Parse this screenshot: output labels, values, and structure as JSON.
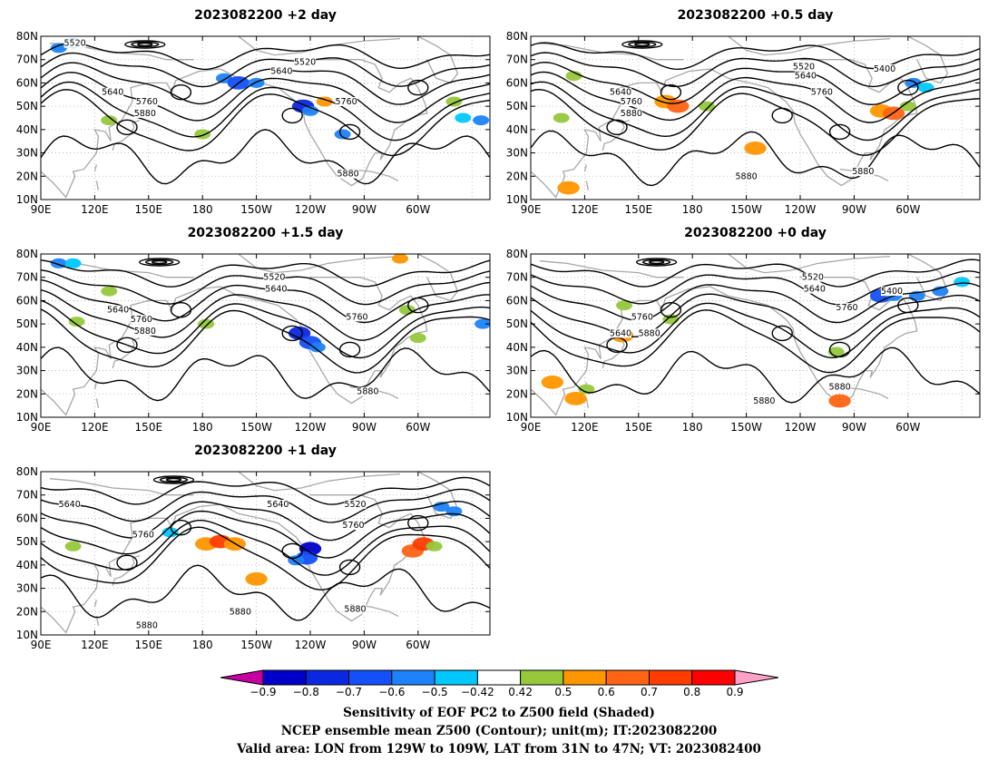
{
  "chart_data": [
    {
      "type": "heatmap",
      "title": "2023082200  +2 day",
      "lon_ticks": [
        "90E",
        "120E",
        "150E",
        "180",
        "150W",
        "120W",
        "90W",
        "60W"
      ],
      "lat_ticks": [
        "10N",
        "20N",
        "30N",
        "40N",
        "50N",
        "60N",
        "70N",
        "80N"
      ],
      "lon_range": [
        90,
        340
      ],
      "lat_range": [
        10,
        80
      ],
      "contour_labels": [
        {
          "text": "5520",
          "lon": 109,
          "lat": 77
        },
        {
          "text": "5520",
          "lon": 237,
          "lat": 69
        },
        {
          "text": "5640",
          "lon": 224,
          "lat": 65
        },
        {
          "text": "5640",
          "lon": 130,
          "lat": 56
        },
        {
          "text": "5760",
          "lon": 149,
          "lat": 52
        },
        {
          "text": "5880",
          "lon": 148,
          "lat": 47
        },
        {
          "text": "5760",
          "lon": 260,
          "lat": 52
        },
        {
          "text": "5880",
          "lon": 261,
          "lat": 21
        }
      ],
      "shading": [
        {
          "lon": 100,
          "lat": 75,
          "v": -0.5
        },
        {
          "lon": 108,
          "lat": 77,
          "v": -0.45
        },
        {
          "lon": 192,
          "lat": 62,
          "v": -0.5
        },
        {
          "lon": 200,
          "lat": 60,
          "v": -0.6
        },
        {
          "lon": 210,
          "lat": 60,
          "v": -0.5
        },
        {
          "lon": 236,
          "lat": 50,
          "v": -0.7
        },
        {
          "lon": 240,
          "lat": 48,
          "v": -0.5
        },
        {
          "lon": 248,
          "lat": 52,
          "v": 0.55
        },
        {
          "lon": 258,
          "lat": 38,
          "v": -0.5
        },
        {
          "lon": 320,
          "lat": 52,
          "v": 0.45
        },
        {
          "lon": 325,
          "lat": 45,
          "v": -0.45
        },
        {
          "lon": 335,
          "lat": 44,
          "v": -0.5
        },
        {
          "lon": 128,
          "lat": 44,
          "v": 0.45
        },
        {
          "lon": 180,
          "lat": 38,
          "v": 0.45
        }
      ]
    },
    {
      "type": "heatmap",
      "title": "2023082200  +0.5  day",
      "lon_ticks": [
        "90E",
        "120E",
        "150E",
        "180",
        "150W",
        "120W",
        "90W",
        "60W"
      ],
      "lat_ticks": [
        "10N",
        "20N",
        "30N",
        "40N",
        "50N",
        "60N",
        "70N",
        "80N"
      ],
      "lon_range": [
        90,
        340
      ],
      "lat_range": [
        10,
        80
      ],
      "contour_labels": [
        {
          "text": "5520",
          "lon": 242,
          "lat": 67
        },
        {
          "text": "5400",
          "lon": 287,
          "lat": 66
        },
        {
          "text": "5640",
          "lon": 243,
          "lat": 63
        },
        {
          "text": "5640",
          "lon": 140,
          "lat": 56
        },
        {
          "text": "5760",
          "lon": 252,
          "lat": 56
        },
        {
          "text": "5760",
          "lon": 146,
          "lat": 52
        },
        {
          "text": "5880",
          "lon": 146,
          "lat": 47
        },
        {
          "text": "5880",
          "lon": 210,
          "lat": 20
        },
        {
          "text": "5880",
          "lon": 275,
          "lat": 22
        }
      ],
      "shading": [
        {
          "lon": 114,
          "lat": 63,
          "v": 0.5
        },
        {
          "lon": 165,
          "lat": 52,
          "v": 0.6
        },
        {
          "lon": 172,
          "lat": 50,
          "v": 0.7
        },
        {
          "lon": 188,
          "lat": 50,
          "v": 0.5
        },
        {
          "lon": 215,
          "lat": 32,
          "v": 0.6
        },
        {
          "lon": 285,
          "lat": 48,
          "v": 0.6
        },
        {
          "lon": 292,
          "lat": 47,
          "v": 0.7
        },
        {
          "lon": 300,
          "lat": 50,
          "v": 0.5
        },
        {
          "lon": 303,
          "lat": 60,
          "v": -0.5
        },
        {
          "lon": 310,
          "lat": 58,
          "v": -0.45
        },
        {
          "lon": 107,
          "lat": 45,
          "v": 0.5
        },
        {
          "lon": 111,
          "lat": 15,
          "v": 0.6
        }
      ]
    },
    {
      "type": "heatmap",
      "title": "2023082200  +1.5  day",
      "lon_ticks": [
        "90E",
        "120E",
        "150E",
        "180",
        "150W",
        "120W",
        "90W",
        "60W"
      ],
      "lat_ticks": [
        "10N",
        "20N",
        "30N",
        "40N",
        "50N",
        "60N",
        "70N",
        "80N"
      ],
      "lon_range": [
        90,
        340
      ],
      "lat_range": [
        10,
        80
      ],
      "contour_labels": [
        {
          "text": "5520",
          "lon": 220,
          "lat": 70
        },
        {
          "text": "5640",
          "lon": 221,
          "lat": 65
        },
        {
          "text": "5640",
          "lon": 133,
          "lat": 56
        },
        {
          "text": "5760",
          "lon": 146,
          "lat": 52
        },
        {
          "text": "5880",
          "lon": 148,
          "lat": 47
        },
        {
          "text": "5760",
          "lon": 266,
          "lat": 53
        },
        {
          "text": "5880",
          "lon": 272,
          "lat": 21
        }
      ],
      "shading": [
        {
          "lon": 100,
          "lat": 76,
          "v": -0.5
        },
        {
          "lon": 108,
          "lat": 76,
          "v": -0.45
        },
        {
          "lon": 128,
          "lat": 64,
          "v": 0.5
        },
        {
          "lon": 182,
          "lat": 50,
          "v": 0.5
        },
        {
          "lon": 234,
          "lat": 46,
          "v": -0.7
        },
        {
          "lon": 240,
          "lat": 42,
          "v": -0.6
        },
        {
          "lon": 244,
          "lat": 40,
          "v": -0.5
        },
        {
          "lon": 294,
          "lat": 56,
          "v": 0.5
        },
        {
          "lon": 300,
          "lat": 44,
          "v": 0.5
        },
        {
          "lon": 290,
          "lat": 78,
          "v": 0.55
        },
        {
          "lon": 336,
          "lat": 50,
          "v": -0.5
        },
        {
          "lon": 110,
          "lat": 51,
          "v": 0.5
        }
      ]
    },
    {
      "type": "heatmap",
      "title": "2023082200  +0  day",
      "lon_ticks": [
        "90E",
        "120E",
        "150E",
        "180",
        "150W",
        "120W",
        "90W",
        "60W"
      ],
      "lat_ticks": [
        "10N",
        "20N",
        "30N",
        "40N",
        "50N",
        "60N",
        "70N",
        "80N"
      ],
      "lon_range": [
        90,
        340
      ],
      "lat_range": [
        10,
        80
      ],
      "contour_labels": [
        {
          "text": "5520",
          "lon": 247,
          "lat": 70
        },
        {
          "text": "5640",
          "lon": 248,
          "lat": 65
        },
        {
          "text": "5400",
          "lon": 291,
          "lat": 64
        },
        {
          "text": "5760",
          "lon": 266,
          "lat": 57
        },
        {
          "text": "5760",
          "lon": 152,
          "lat": 53
        },
        {
          "text": "5640",
          "lon": 140,
          "lat": 46
        },
        {
          "text": "5880",
          "lon": 156,
          "lat": 46
        },
        {
          "text": "5880",
          "lon": 220,
          "lat": 17
        },
        {
          "text": "5880",
          "lon": 262,
          "lat": 23
        }
      ],
      "shading": [
        {
          "lon": 285,
          "lat": 62,
          "v": -0.6
        },
        {
          "lon": 292,
          "lat": 62,
          "v": -0.5
        },
        {
          "lon": 305,
          "lat": 62,
          "v": -0.55
        },
        {
          "lon": 318,
          "lat": 64,
          "v": -0.5
        },
        {
          "lon": 330,
          "lat": 68,
          "v": -0.45
        },
        {
          "lon": 102,
          "lat": 25,
          "v": 0.6
        },
        {
          "lon": 115,
          "lat": 18,
          "v": 0.6
        },
        {
          "lon": 121,
          "lat": 22,
          "v": 0.5
        },
        {
          "lon": 141,
          "lat": 45,
          "v": 0.6
        },
        {
          "lon": 168,
          "lat": 52,
          "v": 0.5
        },
        {
          "lon": 262,
          "lat": 17,
          "v": 0.7
        },
        {
          "lon": 260,
          "lat": 38,
          "v": 0.5
        },
        {
          "lon": 142,
          "lat": 58,
          "v": 0.5
        }
      ]
    },
    {
      "type": "heatmap",
      "title": "2023082200  +1  day",
      "lon_ticks": [
        "90E",
        "120E",
        "150E",
        "180",
        "150W",
        "120W",
        "90W",
        "60W"
      ],
      "lat_ticks": [
        "10N",
        "20N",
        "30N",
        "40N",
        "50N",
        "60N",
        "70N",
        "80N"
      ],
      "lon_range": [
        90,
        340
      ],
      "lat_range": [
        10,
        80
      ],
      "contour_labels": [
        {
          "text": "5640",
          "lon": 106,
          "lat": 66
        },
        {
          "text": "5640",
          "lon": 222,
          "lat": 66
        },
        {
          "text": "5520",
          "lon": 265,
          "lat": 66
        },
        {
          "text": "5760",
          "lon": 264,
          "lat": 57
        },
        {
          "text": "5760",
          "lon": 147,
          "lat": 53
        },
        {
          "text": "5880",
          "lon": 201,
          "lat": 20
        },
        {
          "text": "5880",
          "lon": 265,
          "lat": 21
        },
        {
          "text": "5880",
          "lon": 149,
          "lat": 14
        }
      ],
      "shading": [
        {
          "lon": 182,
          "lat": 49,
          "v": 0.6
        },
        {
          "lon": 190,
          "lat": 50,
          "v": 0.75
        },
        {
          "lon": 198,
          "lat": 49,
          "v": 0.6
        },
        {
          "lon": 240,
          "lat": 47,
          "v": -0.8
        },
        {
          "lon": 238,
          "lat": 43,
          "v": -0.6
        },
        {
          "lon": 232,
          "lat": 42,
          "v": -0.5
        },
        {
          "lon": 297,
          "lat": 46,
          "v": 0.7
        },
        {
          "lon": 303,
          "lat": 49,
          "v": 0.8
        },
        {
          "lon": 309,
          "lat": 48,
          "v": 0.5
        },
        {
          "lon": 313,
          "lat": 65,
          "v": -0.55
        },
        {
          "lon": 320,
          "lat": 63,
          "v": -0.5
        },
        {
          "lon": 210,
          "lat": 34,
          "v": 0.6
        },
        {
          "lon": 162,
          "lat": 54,
          "v": -0.45
        },
        {
          "lon": 108,
          "lat": 48,
          "v": 0.5
        }
      ]
    }
  ],
  "colorbar": {
    "tick_labels": [
      "−0.9",
      "−0.8",
      "−0.7",
      "−0.6",
      "−0.5",
      "−0.42",
      "0.42",
      "0.5",
      "0.6",
      "0.7",
      "0.8",
      "0.9"
    ],
    "colors": [
      "#0000c8",
      "#0a28e0",
      "#1450f8",
      "#1e82fa",
      "#00c8ff",
      "#ffffff",
      "#96c83c",
      "#ff9600",
      "#ff6414",
      "#ff3c00",
      "#ff0000"
    ],
    "left_arrow_color": "#c800a0",
    "right_arrow_color": "#ffa0c8"
  },
  "caption": [
    "Sensitivity of EOF PC2 to Z500 field (Shaded)",
    "NCEP ensemble mean Z500 (Contour); unit(m); IT:2023082200",
    "Valid area: LON from 129W to 109W, LAT from 31N to 47N; VT: 2023082400"
  ]
}
